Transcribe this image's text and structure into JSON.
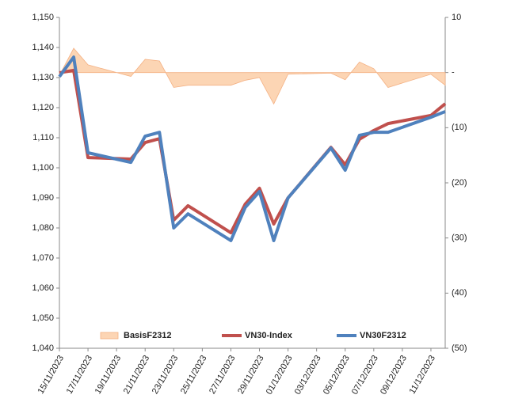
{
  "chart_data": {
    "type": "line",
    "x": [
      "15/11/2023",
      "16/11/2023",
      "17/11/2023",
      "20/11/2023",
      "21/11/2023",
      "22/11/2023",
      "23/11/2023",
      "24/11/2023",
      "27/11/2023",
      "28/11/2023",
      "29/11/2023",
      "30/11/2023",
      "01/12/2023",
      "04/12/2023",
      "05/12/2023",
      "06/12/2023",
      "07/12/2023",
      "08/12/2023",
      "11/12/2023",
      "12/12/2023"
    ],
    "xlim": [
      "15/11/2023",
      "12/12/2023"
    ],
    "xticks": [
      "15/11/2023",
      "17/11/2023",
      "19/11/2023",
      "21/11/2023",
      "23/11/2023",
      "25/11/2023",
      "27/11/2023",
      "29/11/2023",
      "01/12/2023",
      "03/12/2023",
      "05/12/2023",
      "07/12/2023",
      "09/12/2023",
      "11/12/2023"
    ],
    "ylim": [
      1040,
      1150
    ],
    "yticks": [
      {
        "value": 1040,
        "label": "1,040"
      },
      {
        "value": 1050,
        "label": "1,050"
      },
      {
        "value": 1060,
        "label": "1,060"
      },
      {
        "value": 1070,
        "label": "1,070"
      },
      {
        "value": 1080,
        "label": "1,080"
      },
      {
        "value": 1090,
        "label": "1,090"
      },
      {
        "value": 1100,
        "label": "1,100"
      },
      {
        "value": 1110,
        "label": "1,110"
      },
      {
        "value": 1120,
        "label": "1,120"
      },
      {
        "value": 1130,
        "label": "1,130"
      },
      {
        "value": 1140,
        "label": "1,140"
      },
      {
        "value": 1150,
        "label": "1,150"
      }
    ],
    "y2lim": [
      -50,
      10
    ],
    "y2ticks": [
      {
        "value": -50,
        "label": "(50)"
      },
      {
        "value": -40,
        "label": "(40)"
      },
      {
        "value": -30,
        "label": "(30)"
      },
      {
        "value": -20,
        "label": "(20)"
      },
      {
        "value": -10,
        "label": "(10)"
      },
      {
        "value": 0,
        "label": "-"
      },
      10
    ],
    "grid": false,
    "legend": "bottom",
    "series": [
      {
        "name": "BasisF2312",
        "type": "area",
        "axis": "y2",
        "color": "#fcd5b4",
        "values": [
          -0.5,
          4.4,
          1.4,
          -0.7,
          2.4,
          2.1,
          -2.7,
          -2.3,
          -2.3,
          -1.4,
          -0.9,
          -5.7,
          -0.3,
          -0.1,
          -1.3,
          1.9,
          0.7,
          -2.7,
          -0.3,
          -2.3
        ]
      },
      {
        "name": "VN30-Index",
        "type": "line",
        "color": "#c0504d",
        "values": [
          1131.6,
          1132.4,
          1103.4,
          1102.9,
          1108.4,
          1109.7,
          1082.6,
          1087.4,
          1078.4,
          1087.9,
          1093.2,
          1081.3,
          1090.0,
          1106.8,
          1101.0,
          1109.5,
          1112.4,
          1114.7,
          1117.4,
          1121.3
        ]
      },
      {
        "name": "VN30F2312",
        "type": "line",
        "color": "#4f81bd",
        "values": [
          1130.3,
          1136.8,
          1105.0,
          1101.8,
          1110.5,
          1111.8,
          1080.0,
          1084.7,
          1075.8,
          1086.8,
          1092.1,
          1075.8,
          1090.0,
          1106.6,
          1099.2,
          1110.8,
          1111.8,
          1111.8,
          1116.8,
          1118.7
        ]
      }
    ]
  }
}
